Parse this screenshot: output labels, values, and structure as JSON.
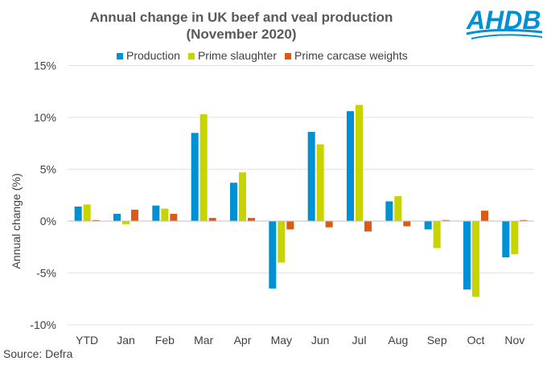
{
  "logo_text": "AHDB",
  "source": "Source: Defra",
  "colors": {
    "Production": "#0090d4",
    "Prime slaughter": "#c8d400",
    "Prime carcase weights": "#dc5a14",
    "grid": "#e3e3e3",
    "axis": "#bfbfbf",
    "logo": "#0090d4"
  },
  "chart_data": {
    "type": "bar",
    "title": "Annual change in UK beef and veal production",
    "subtitle": "(November 2020)",
    "xlabel": "",
    "ylabel": "Annual change (%)",
    "ylim": [
      -10,
      15
    ],
    "yticks": [
      15,
      10,
      5,
      0,
      -5,
      -10
    ],
    "ytick_labels": [
      "15%",
      "10%",
      "5%",
      "0%",
      "-5%",
      "-10%"
    ],
    "grid": true,
    "legend": "top",
    "categories": [
      "YTD",
      "Jan",
      "Feb",
      "Mar",
      "Apr",
      "May",
      "Jun",
      "Jul",
      "Aug",
      "Sep",
      "Oct",
      "Nov"
    ],
    "series": [
      {
        "name": "Production",
        "values": [
          1.4,
          0.7,
          1.5,
          8.5,
          3.7,
          -6.5,
          8.6,
          10.6,
          1.9,
          -0.8,
          -6.6,
          -3.5
        ]
      },
      {
        "name": "Prime slaughter",
        "values": [
          1.6,
          -0.3,
          1.2,
          10.3,
          4.7,
          -4.0,
          7.4,
          11.2,
          2.4,
          -2.6,
          -7.3,
          -3.2
        ]
      },
      {
        "name": "Prime carcase weights",
        "values": [
          0.1,
          1.1,
          0.7,
          0.3,
          0.3,
          -0.8,
          -0.6,
          -1.0,
          -0.5,
          0.1,
          1.0,
          0.1
        ]
      }
    ]
  }
}
